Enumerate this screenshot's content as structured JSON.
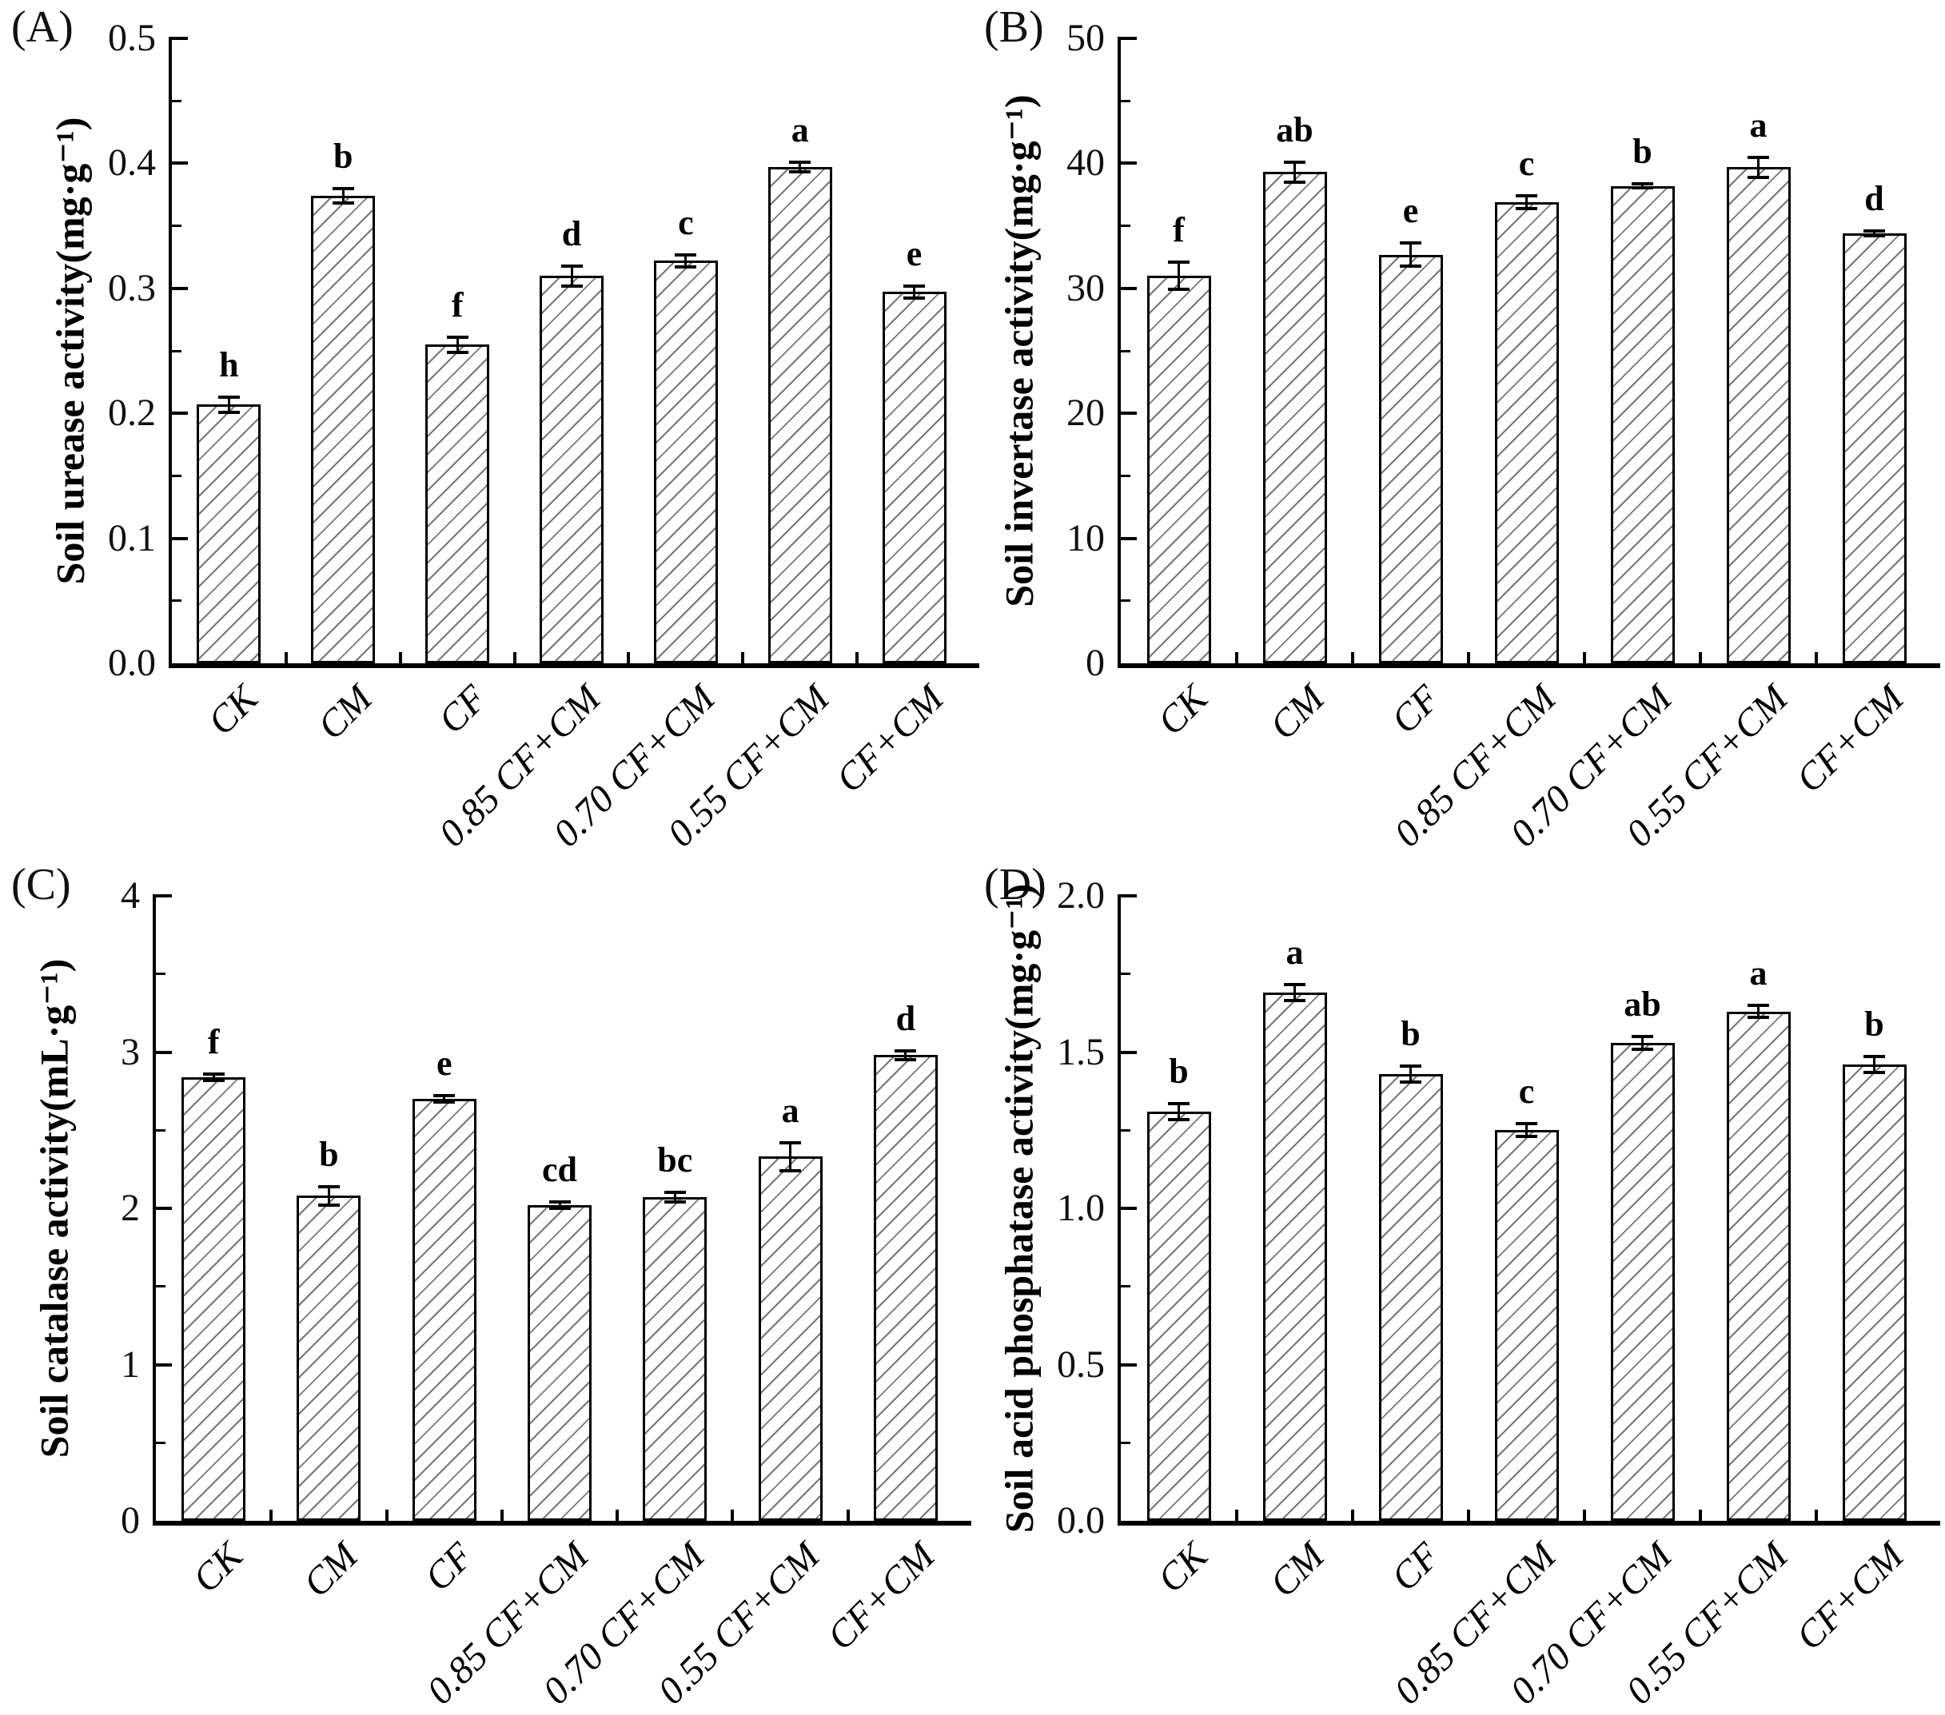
{
  "figure": {
    "background": "#ffffff",
    "bar_outline_color": "#000000",
    "hatch_color": "#777777",
    "text_color": "#000000"
  },
  "chart_data": [
    {
      "panel_label": "(A)",
      "type": "bar",
      "ylabel": "Soil urease activity(mg·g⁻¹)",
      "xlabel": "",
      "categories": [
        "CK",
        "CM",
        "CF",
        "0.85 CF+CM",
        "0.70 CF+CM",
        "0.55 CF+CM",
        "CF+CM"
      ],
      "values": [
        0.207,
        0.374,
        0.255,
        0.31,
        0.322,
        0.397,
        0.297
      ],
      "errors": [
        0.006,
        0.006,
        0.006,
        0.008,
        0.005,
        0.004,
        0.005
      ],
      "sig_letters": [
        "h",
        "b",
        "f",
        "d",
        "c",
        "a",
        "e"
      ],
      "ylim": [
        0,
        0.5
      ],
      "ytick_step": 0.1,
      "yminor_step": 0.05,
      "ytick_decimals": 1,
      "ytick_labels": [
        "0.0",
        "0.1",
        "0.2",
        "0.3",
        "0.4",
        "0.5"
      ],
      "grid": false,
      "legend": null,
      "bar_style": "diagonal-hatch"
    },
    {
      "panel_label": "(B)",
      "type": "bar",
      "ylabel": "Soil invertase activity(mg·g⁻¹)",
      "xlabel": "",
      "categories": [
        "CK",
        "CM",
        "CF",
        "0.85 CF+CM",
        "0.70 CF+CM",
        "0.55 CF+CM",
        "CF+CM"
      ],
      "values": [
        31.0,
        39.3,
        32.7,
        36.9,
        38.2,
        39.7,
        34.4
      ],
      "errors": [
        1.1,
        0.8,
        0.9,
        0.5,
        0.15,
        0.8,
        0.2
      ],
      "sig_letters": [
        "f",
        "ab",
        "e",
        "c",
        "b",
        "a",
        "d"
      ],
      "ylim": [
        0,
        50
      ],
      "ytick_step": 10,
      "yminor_step": 5,
      "ytick_decimals": 0,
      "ytick_labels": [
        "0",
        "10",
        "20",
        "30",
        "40",
        "50"
      ],
      "grid": false,
      "legend": null,
      "bar_style": "diagonal-hatch"
    },
    {
      "panel_label": "(C)",
      "type": "bar",
      "ylabel": "Soil catalase activity(mL·g⁻¹)",
      "xlabel": "",
      "categories": [
        "CK",
        "CM",
        "CF",
        "0.85 CF+CM",
        "0.70 CF+CM",
        "0.55 CF+CM",
        "CF+CM"
      ],
      "values": [
        2.84,
        2.08,
        2.7,
        2.02,
        2.07,
        2.33,
        2.98
      ],
      "errors": [
        0.02,
        0.06,
        0.02,
        0.02,
        0.03,
        0.09,
        0.03
      ],
      "sig_letters": [
        "f",
        "b",
        "e",
        "cd",
        "bc",
        "a",
        "d"
      ],
      "ylim": [
        0,
        4
      ],
      "ytick_step": 1,
      "yminor_step": 0.5,
      "ytick_decimals": 0,
      "ytick_labels": [
        "0",
        "1",
        "2",
        "3",
        "4"
      ],
      "grid": false,
      "legend": null,
      "bar_style": "diagonal-hatch"
    },
    {
      "panel_label": "(D)",
      "type": "bar",
      "ylabel": "Soil acid phosphatase activity(mg·g⁻¹)",
      "xlabel": "",
      "categories": [
        "CK",
        "CM",
        "CF",
        "0.85 CF+CM",
        "0.70 CF+CM",
        "0.55 CF+CM",
        "CF+CM"
      ],
      "values": [
        1.31,
        1.69,
        1.43,
        1.25,
        1.53,
        1.63,
        1.46
      ],
      "errors": [
        0.025,
        0.025,
        0.025,
        0.02,
        0.02,
        0.02,
        0.025
      ],
      "sig_letters": [
        "b",
        "a",
        "b",
        "c",
        "ab",
        "a",
        "b"
      ],
      "ylim": [
        0,
        2.0
      ],
      "ytick_step": 0.5,
      "yminor_step": 0.25,
      "ytick_decimals": 1,
      "ytick_labels": [
        "0.0",
        "0.5",
        "1.0",
        "1.5",
        "2.0"
      ],
      "grid": false,
      "legend": null,
      "bar_style": "diagonal-hatch"
    }
  ]
}
